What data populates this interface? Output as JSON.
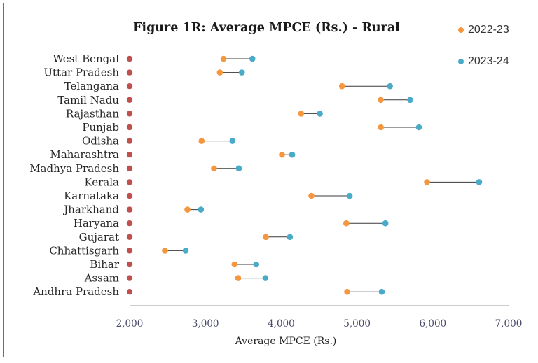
{
  "chart_data": {
    "type": "dumbbell",
    "title": "Figure 1R: Average MPCE (Rs.) - Rural",
    "xlabel": "Average MPCE (Rs.)",
    "ylabel": "",
    "xlim": [
      2000,
      7000
    ],
    "xticks": [
      2000,
      3000,
      4000,
      5000,
      6000,
      7000
    ],
    "xtick_labels": [
      "2,000",
      "3,000",
      "4,000",
      "5,000",
      "6,000",
      "7,000"
    ],
    "legend_position": "top-right",
    "series": [
      {
        "name": "2022-23",
        "color": "#f4973f"
      },
      {
        "name": "2023-24",
        "color": "#4aabc8"
      }
    ],
    "category_marker_color": "#c0504d",
    "connector_color": "#3a3a3a",
    "categories": [
      "West Bengal",
      "Uttar Pradesh",
      "Telangana",
      "Tamil Nadu",
      "Rajasthan",
      "Punjab",
      "Odisha",
      "Maharashtra",
      "Madhya Pradesh",
      "Kerala",
      "Karnataka",
      "Jharkhand",
      "Haryana",
      "Gujarat",
      "Chhattisgarh",
      "Bihar",
      "Assam",
      "Andhra Pradesh"
    ],
    "values_2022_23": [
      3239,
      3191,
      4802,
      5315,
      4263,
      5315,
      2950,
      4010,
      3113,
      5924,
      4399,
      2763,
      4859,
      3798,
      2466,
      3384,
      3432,
      4870
    ],
    "values_2023_24": [
      3620,
      3481,
      5435,
      5701,
      4510,
      5817,
      3357,
      4145,
      3441,
      6611,
      4903,
      2941,
      5375,
      4115,
      2739,
      3670,
      3792,
      5327
    ]
  }
}
